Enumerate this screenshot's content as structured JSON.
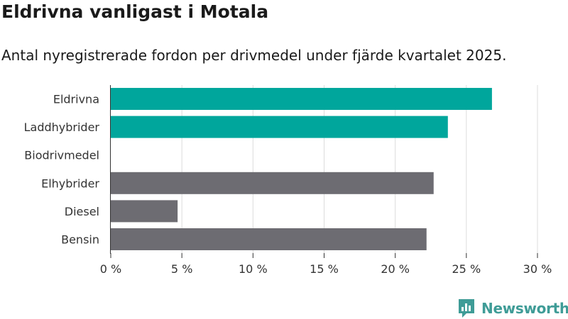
{
  "header": {
    "title": "Eldrivna vanligast i Motala",
    "subtitle": "Antal nyregistrerade fordon per drivmedel under fjärde kvartalet 2025."
  },
  "branding": {
    "name": "Newsworthy",
    "icon": "newsworthy-logo-icon",
    "color": "#3f9c97"
  },
  "chart_data": {
    "type": "bar",
    "orientation": "horizontal",
    "categories": [
      "Eldrivna",
      "Laddhybrider",
      "Biodrivmedel",
      "Elhybrider",
      "Diesel",
      "Bensin"
    ],
    "values": [
      26.8,
      23.7,
      0,
      22.7,
      4.7,
      22.2
    ],
    "colors": [
      "#00a69c",
      "#00a69c",
      "#00a69c",
      "#6d6c72",
      "#6d6c72",
      "#6d6c72"
    ],
    "xlim": [
      0,
      30
    ],
    "xticks": [
      0,
      5,
      10,
      15,
      20,
      25,
      30
    ],
    "tick_suffix": " %",
    "grid": true
  }
}
